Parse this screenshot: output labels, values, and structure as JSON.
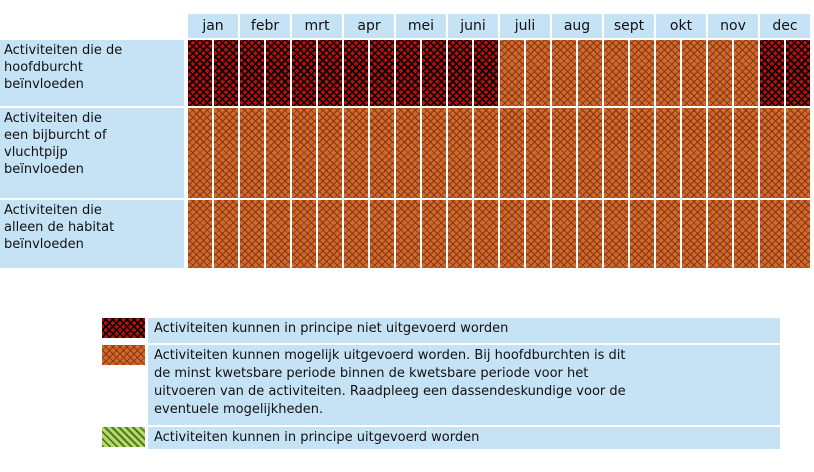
{
  "table": {
    "months": [
      "jan",
      "febr",
      "mrt",
      "apr",
      "mei",
      "juni",
      "juli",
      "aug",
      "sept",
      "okt",
      "nov",
      "dec"
    ],
    "rows": [
      {
        "label": "Activiteiten die de\nhoofdburcht\nbeïnvloeden",
        "cells": [
          0,
          0,
          0,
          0,
          0,
          0,
          0,
          0,
          0,
          0,
          0,
          0,
          1,
          1,
          1,
          1,
          1,
          1,
          1,
          1,
          1,
          1,
          0,
          0
        ]
      },
      {
        "label": "Activiteiten die\neen bijburcht of\nvluchtpijp\nbeïnvloeden",
        "cells": [
          1,
          1,
          1,
          1,
          1,
          1,
          1,
          1,
          1,
          1,
          1,
          1,
          1,
          1,
          1,
          1,
          1,
          1,
          1,
          1,
          1,
          1,
          1,
          1
        ]
      },
      {
        "label": "Activiteiten die\nalleen de habitat\nbeïnvloeden",
        "cells": [
          1,
          1,
          1,
          1,
          1,
          1,
          1,
          1,
          1,
          1,
          1,
          1,
          1,
          1,
          1,
          1,
          1,
          1,
          1,
          1,
          1,
          1,
          1,
          1
        ]
      }
    ]
  },
  "legend": [
    {
      "text": "Activiteiten kunnen in principe niet uitgevoerd worden"
    },
    {
      "text": "Activiteiten kunnen mogelijk uitgevoerd worden. Bij hoofdburchten is dit\nde minst kwetsbare periode binnen de kwetsbare periode voor het\nuitvoeren van de activiteiten. Raadpleeg een dassendeskundige voor de\neventuele mogelijkheden."
    },
    {
      "text": "Activiteiten kunnen in principe uitgevoerd worden"
    }
  ]
}
